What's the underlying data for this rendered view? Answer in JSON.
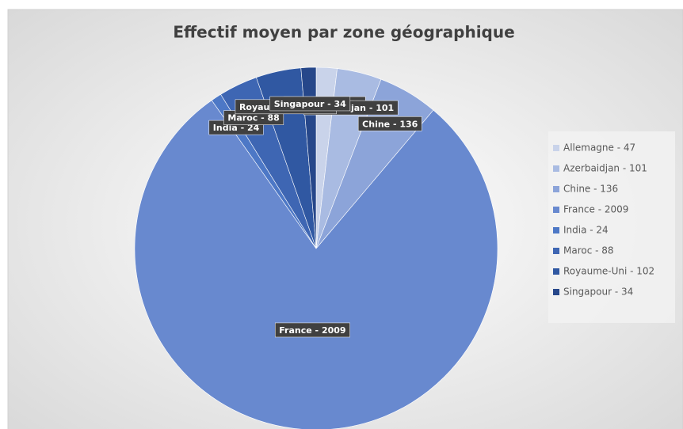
{
  "chart_data": {
    "type": "pie",
    "title": "Effectif moyen par zone géographique",
    "categories": [
      "Allemagne - 47",
      "Azerbaidjan - 101",
      "Chine - 136",
      "France - 2009",
      "India - 24",
      "Maroc - 88",
      "Royaume-Uni - 102",
      "Singapour - 34"
    ],
    "values": [
      47,
      101,
      136,
      2009,
      24,
      88,
      102,
      34
    ],
    "value_labels": [
      "Allemagne - 47",
      "Azerbaidjan - 101",
      "Chine - 136",
      "France - 2009",
      "India - 24",
      "Maroc - 88",
      "Royaume-Uni - 102",
      "Singapour - 34"
    ],
    "colors": [
      "#c9d3ea",
      "#a9bbe2",
      "#8ca4d9",
      "#6889cf",
      "#4d78c6",
      "#3e66b3",
      "#3058a2",
      "#26478a"
    ],
    "legend": "right"
  }
}
